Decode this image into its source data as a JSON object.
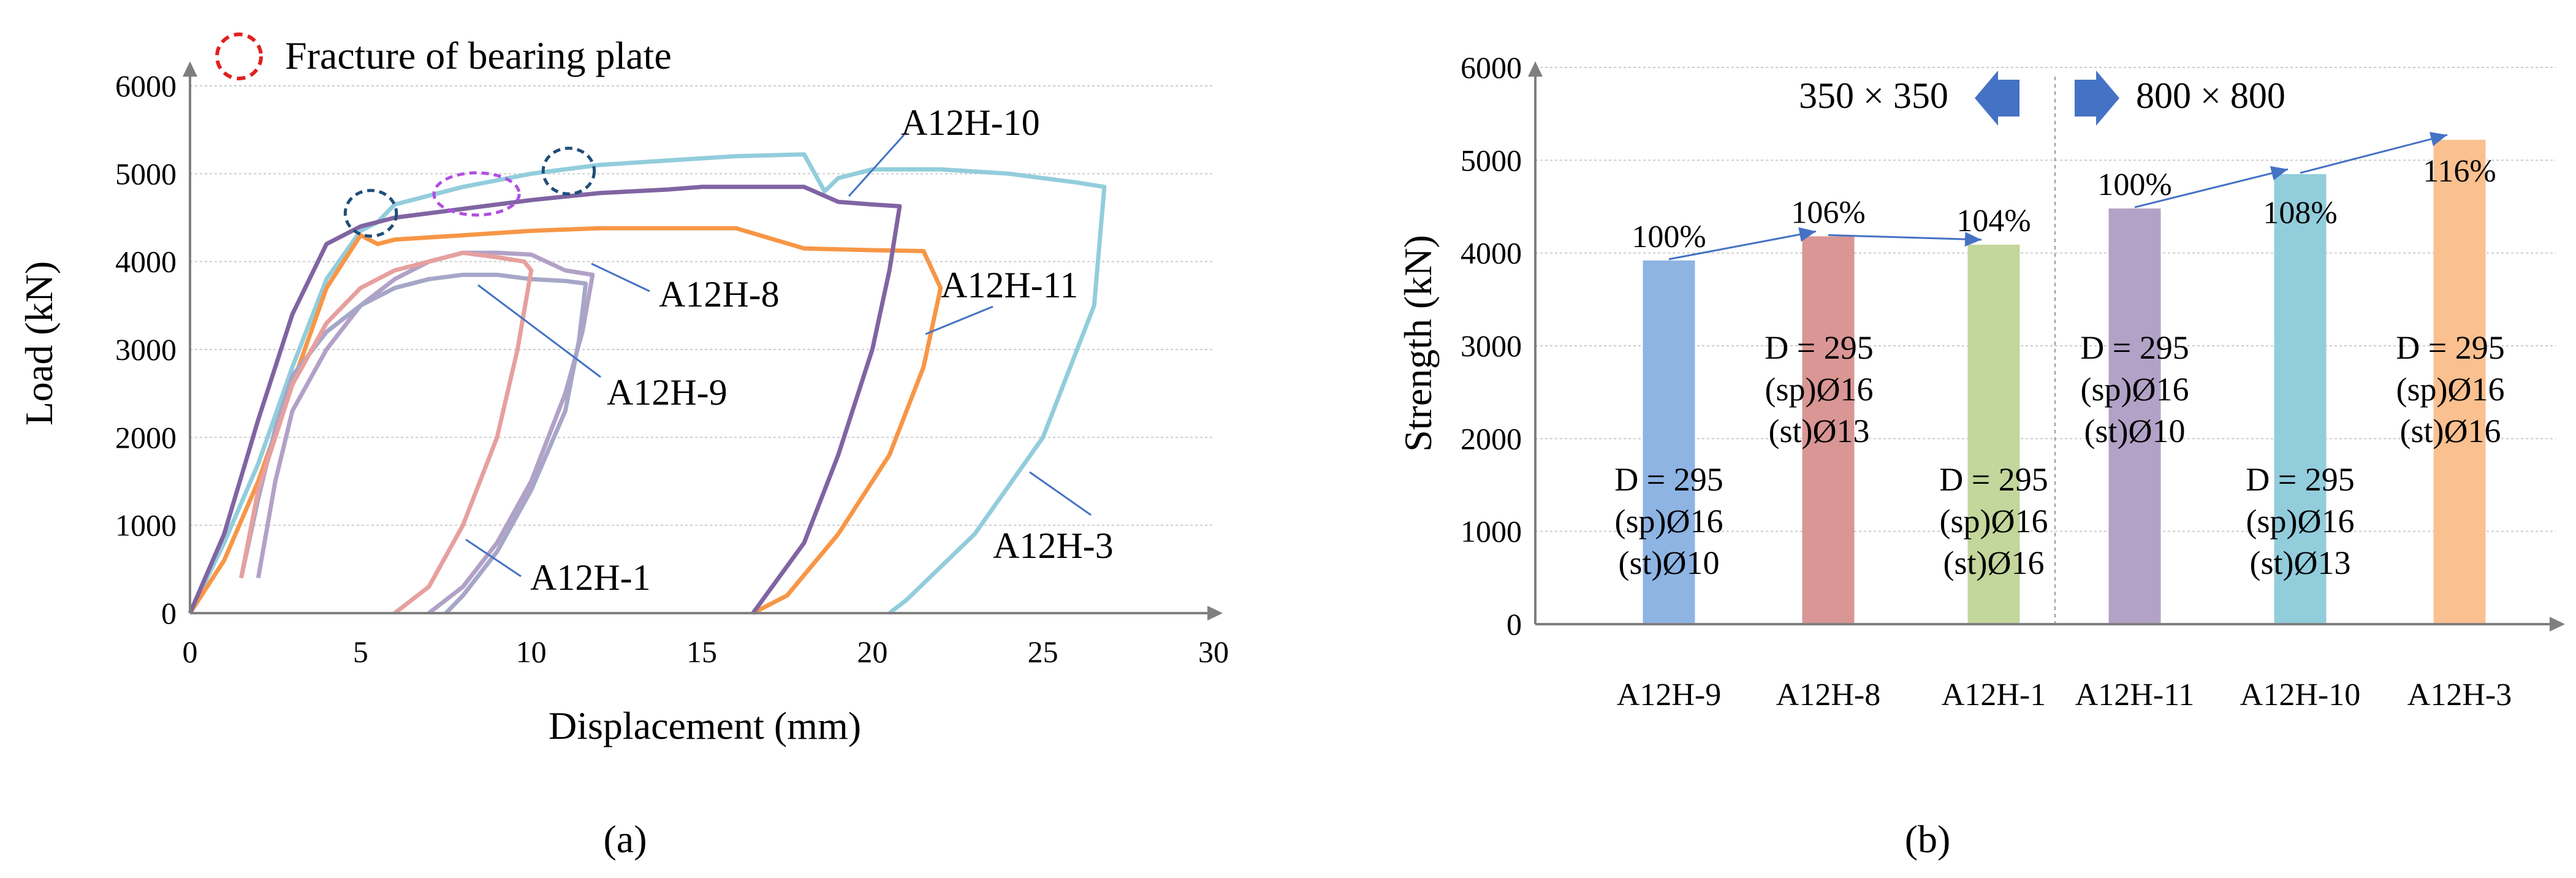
{
  "chart_data": [
    {
      "type": "line",
      "panel_label": "(a)",
      "xlabel": "Displacement (mm)",
      "ylabel": "Load (kN)",
      "xlim": [
        0,
        30
      ],
      "ylim": [
        0,
        6000
      ],
      "xticks": [
        "0",
        "5",
        "10",
        "15",
        "20",
        "25",
        "30"
      ],
      "yticks": [
        "0",
        "1000",
        "2000",
        "3000",
        "4000",
        "5000",
        "6000"
      ],
      "legend": {
        "label": "Fracture of bearing plate",
        "placement": "top-left"
      },
      "series": [
        {
          "name": "A12H-10",
          "color": "#92cddc",
          "x": [
            0,
            1,
            2,
            3,
            4,
            5,
            5.5,
            6,
            8,
            10,
            12,
            14,
            16,
            18,
            18.6,
            19,
            20,
            22,
            24,
            26,
            26.8,
            26.5,
            25,
            23,
            21,
            20.5
          ],
          "y": [
            0,
            800,
            1700,
            2800,
            3800,
            4350,
            4450,
            4650,
            4850,
            5000,
            5100,
            5150,
            5200,
            5220,
            4800,
            4950,
            5050,
            5050,
            5000,
            4900,
            4850,
            3500,
            2000,
            900,
            150,
            0
          ]
        },
        {
          "name": "A12H-11",
          "color": "#f79646",
          "x": [
            0,
            1,
            2,
            3,
            4,
            5,
            5.5,
            6,
            8,
            10,
            12,
            14,
            16,
            18,
            20,
            21.5,
            22,
            21.5,
            20.5,
            19,
            17.5,
            16.5
          ],
          "y": [
            0,
            600,
            1500,
            2600,
            3700,
            4300,
            4200,
            4250,
            4300,
            4350,
            4380,
            4380,
            4380,
            4150,
            4130,
            4120,
            3700,
            2800,
            1800,
            900,
            200,
            0
          ]
        },
        {
          "name": "A12H-3",
          "color": "#8064a2",
          "x": [
            0,
            1,
            2,
            3,
            4,
            5,
            6,
            8,
            10,
            12,
            14,
            15,
            16,
            18,
            19,
            20,
            20.8,
            20.5,
            20,
            19,
            18,
            16.5
          ],
          "y": [
            0,
            900,
            2200,
            3400,
            4200,
            4400,
            4500,
            4600,
            4700,
            4780,
            4820,
            4850,
            4850,
            4850,
            4680,
            4650,
            4630,
            3900,
            3000,
            1800,
            800,
            0
          ]
        },
        {
          "name": "A12H-8",
          "color": "#b2a1c7",
          "x": [
            2,
            2.5,
            3,
            4,
            5,
            6,
            7,
            8,
            9,
            10,
            11,
            11.8,
            11.5,
            11,
            10,
            9,
            8,
            7
          ],
          "y": [
            400,
            1500,
            2300,
            3000,
            3500,
            3800,
            4000,
            4100,
            4100,
            4080,
            3900,
            3850,
            3200,
            2500,
            1500,
            800,
            300,
            0
          ]
        },
        {
          "name": "A12H-9",
          "color": "#a6a6c8",
          "x": [
            1.5,
            2,
            2.5,
            3,
            4,
            5,
            6,
            7,
            8,
            9,
            10,
            11,
            11.6,
            11.4,
            11,
            10,
            9,
            8,
            7.5
          ],
          "y": [
            400,
            1300,
            2100,
            2700,
            3200,
            3500,
            3700,
            3800,
            3850,
            3850,
            3800,
            3780,
            3750,
            3100,
            2300,
            1400,
            700,
            200,
            0
          ]
        },
        {
          "name": "A12H-1",
          "color": "#e6a09e",
          "x": [
            1.5,
            2,
            3,
            4,
            5,
            6,
            7,
            8,
            9,
            9.8,
            10,
            9.6,
            9,
            8,
            7,
            6
          ],
          "y": [
            400,
            1400,
            2600,
            3300,
            3700,
            3900,
            4000,
            4100,
            4050,
            4000,
            3900,
            3000,
            2000,
            1000,
            300,
            0
          ]
        }
      ],
      "callouts": [
        "A12H-10",
        "A12H-11",
        "A12H-8",
        "A12H-9",
        "A12H-1",
        "A12H-3"
      ]
    },
    {
      "type": "bar",
      "panel_label": "(b)",
      "xlabel": "",
      "ylabel": "Strength (kN)",
      "ylim": [
        0,
        6000
      ],
      "yticks": [
        "0",
        "1000",
        "2000",
        "3000",
        "4000",
        "5000",
        "6000"
      ],
      "categories": [
        "A12H-9",
        "A12H-8",
        "A12H-1",
        "A12H-11",
        "A12H-10",
        "A12H-3"
      ],
      "values": [
        3920,
        4180,
        4090,
        4480,
        4850,
        5220
      ],
      "colors": [
        "#8eb4e3",
        "#d99694",
        "#c3d69b",
        "#b3a2c7",
        "#92cddc",
        "#fac090"
      ],
      "percent_labels": [
        "100%",
        "106%",
        "104%",
        "100%",
        "108%",
        "116%"
      ],
      "group_labels": [
        "350 × 350",
        "800 × 800"
      ],
      "conditions": [
        [
          "D = 295",
          "(sp)Ø16",
          "(st)Ø10"
        ],
        [
          "D = 295",
          "(sp)Ø16",
          "(st)Ø13"
        ],
        [
          "D = 295",
          "(sp)Ø16",
          "(st)Ø16"
        ],
        [
          "D = 295",
          "(sp)Ø16",
          "(st)Ø10"
        ],
        [
          "D = 295",
          "(sp)Ø16",
          "(st)Ø13"
        ],
        [
          "D = 295",
          "(sp)Ø16",
          "(st)Ø16"
        ]
      ]
    }
  ]
}
